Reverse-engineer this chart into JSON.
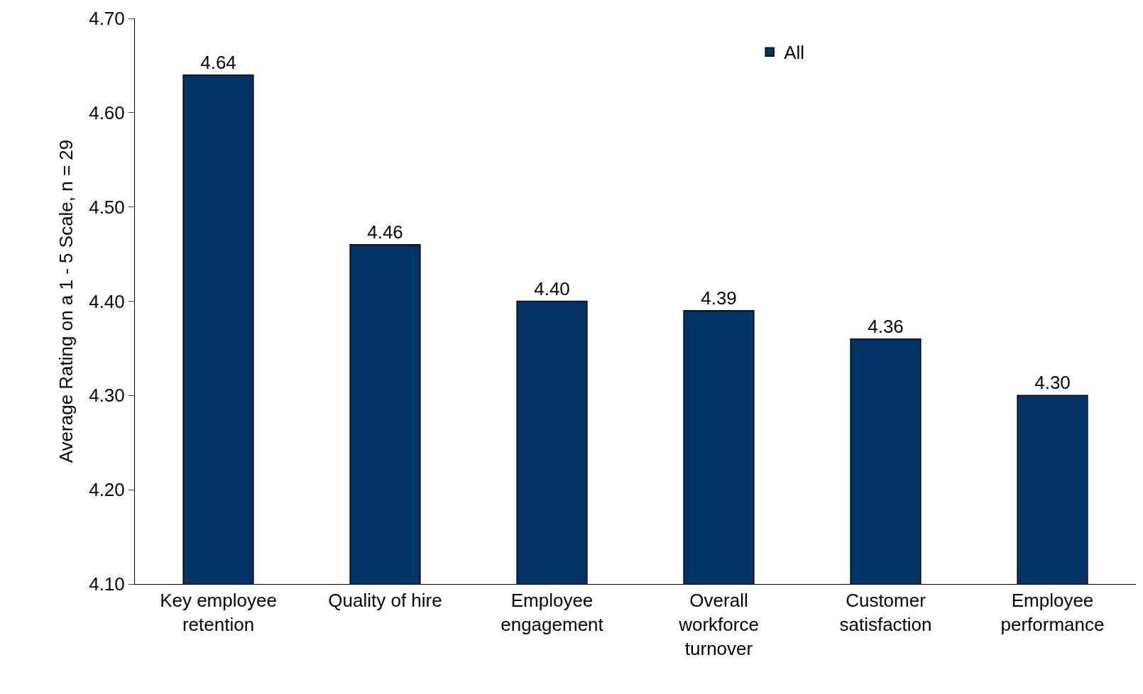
{
  "chart_data": {
    "type": "bar",
    "ylabel": "Average Rating on a 1 - 5 Scale, n = 29",
    "categories": [
      "Key employee retention",
      "Quality of hire",
      "Employee engagement",
      "Overall workforce turnover",
      "Customer satisfaction",
      "Employee performance"
    ],
    "series": [
      {
        "name": "All",
        "color": "#003366",
        "values": [
          4.64,
          4.46,
          4.4,
          4.39,
          4.36,
          4.3
        ],
        "value_labels": [
          "4.64",
          "4.46",
          "4.40",
          "4.39",
          "4.36",
          "4.30"
        ]
      }
    ],
    "ylim": [
      4.1,
      4.7
    ],
    "yticks": [
      {
        "value": 4.1,
        "label": "4.10"
      },
      {
        "value": 4.2,
        "label": "4.20"
      },
      {
        "value": 4.3,
        "label": "4.30"
      },
      {
        "value": 4.4,
        "label": "4.40"
      },
      {
        "value": 4.5,
        "label": "4.50"
      },
      {
        "value": 4.6,
        "label": "4.60"
      },
      {
        "value": 4.7,
        "label": "4.70"
      }
    ],
    "legend": "top right"
  }
}
